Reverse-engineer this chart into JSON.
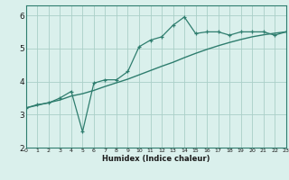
{
  "xlabel": "Humidex (Indice chaleur)",
  "bg_color": "#daf0ec",
  "line_color": "#2e7d6e",
  "grid_color": "#aacfc8",
  "x_data": [
    0,
    1,
    2,
    3,
    4,
    5,
    6,
    7,
    8,
    9,
    10,
    11,
    12,
    13,
    14,
    15,
    16,
    17,
    18,
    19,
    20,
    21,
    22,
    23
  ],
  "y_data": [
    3.2,
    3.3,
    3.35,
    3.5,
    3.7,
    2.48,
    3.95,
    4.05,
    4.05,
    4.3,
    5.05,
    5.25,
    5.35,
    5.7,
    5.95,
    5.45,
    5.5,
    5.5,
    5.4,
    5.5,
    5.5,
    5.5,
    5.4,
    5.5
  ],
  "y_smooth": [
    3.2,
    3.28,
    3.36,
    3.44,
    3.56,
    3.63,
    3.73,
    3.85,
    3.96,
    4.07,
    4.2,
    4.33,
    4.46,
    4.58,
    4.72,
    4.85,
    4.97,
    5.08,
    5.18,
    5.27,
    5.35,
    5.41,
    5.46,
    5.5
  ],
  "ylim": [
    2.0,
    6.3
  ],
  "xlim": [
    0,
    23
  ],
  "yticks": [
    2,
    3,
    4,
    5,
    6
  ],
  "xticks": [
    0,
    1,
    2,
    3,
    4,
    5,
    6,
    7,
    8,
    9,
    10,
    11,
    12,
    13,
    14,
    15,
    16,
    17,
    18,
    19,
    20,
    21,
    22,
    23
  ]
}
